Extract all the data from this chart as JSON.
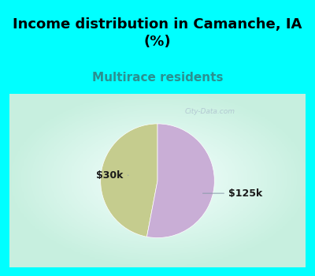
{
  "title": "Income distribution in Camanche, IA\n(%)",
  "subtitle": "Multirace residents",
  "title_bg_color": "#00FFFF",
  "chart_bg_gradient_edge": "#c8f0e0",
  "chart_bg_gradient_center": "#f5fffe",
  "slices": [
    {
      "label": "$30k",
      "value": 47,
      "color": "#c5cc8e"
    },
    {
      "label": "$125k",
      "value": 53,
      "color": "#c9aed6"
    }
  ],
  "title_fontsize": 13,
  "subtitle_fontsize": 11,
  "subtitle_color": "#2a9090",
  "label_fontsize": 9,
  "label_color": "#1a1a1a",
  "startangle": 90,
  "watermark": "City-Data.com"
}
